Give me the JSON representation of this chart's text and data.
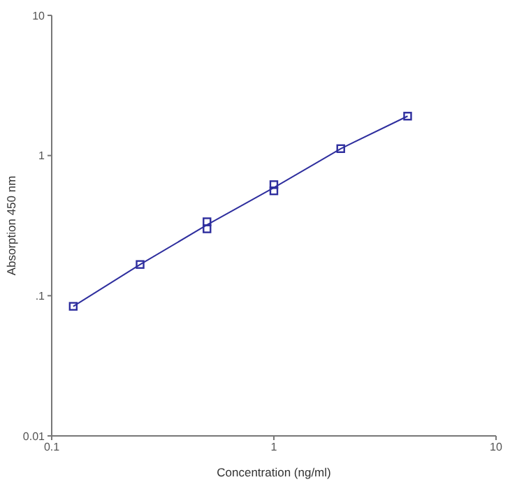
{
  "chart_data": {
    "type": "scatter",
    "xlabel": "Concentration (ng/ml)",
    "ylabel": "Absorption 450 nm",
    "log": "xy",
    "xlim": [
      0.1,
      10
    ],
    "xticks": [
      0.1,
      1,
      10
    ],
    "ylim": [
      0.01,
      10
    ],
    "yticks": [
      0.01,
      {
        "value": 0.1,
        "label": ".1"
      },
      1,
      10
    ],
    "grid": false,
    "marker": "square",
    "series": [
      {
        "type": "line",
        "color": "#2e2e9e",
        "x": [
          0.125,
          0.25,
          0.5,
          1,
          2,
          4
        ],
        "values": [
          0.084,
          0.167,
          0.32,
          0.59,
          1.12,
          1.91
        ],
        "marker": "none"
      },
      {
        "color": "#2e2e9e",
        "x": [
          0.125,
          0.25,
          0.5,
          0.5,
          1,
          1,
          2,
          4
        ],
        "values": [
          0.084,
          0.167,
          0.337,
          0.3,
          0.62,
          0.56,
          1.12,
          1.91
        ]
      }
    ]
  }
}
